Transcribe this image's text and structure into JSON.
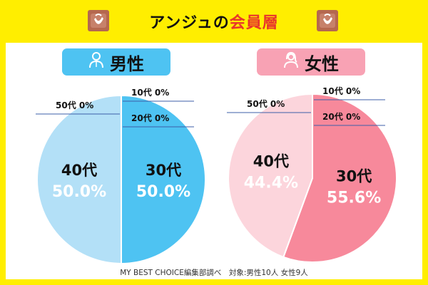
{
  "header": {
    "title_prefix": "アンジュの",
    "title_accent": "会員層",
    "left_logo_icon": "bag-logo-icon",
    "right_logo_icon": "bag-logo-icon"
  },
  "male": {
    "label": "男性",
    "icon": "male-person-icon",
    "accent_color": "#4ec3f2"
  },
  "female": {
    "label": "女性",
    "icon": "female-person-icon",
    "accent_color": "#f8a2b4"
  },
  "footer": "MY BEST CHOICE編集部調べ　対象:男性10人 女性9人",
  "chart_data": [
    {
      "type": "pie",
      "title": "男性",
      "categories": [
        "10代",
        "20代",
        "30代",
        "40代",
        "50代"
      ],
      "values": [
        0,
        0,
        50.0,
        50.0,
        0
      ],
      "labels": [
        "10代 0%",
        "20代 0%",
        "30代 50.0%",
        "40代 50.0%",
        "50代 0%"
      ],
      "colors": {
        "30代": "#4ec3f2",
        "40代": "#b3e0f7"
      }
    },
    {
      "type": "pie",
      "title": "女性",
      "categories": [
        "10代",
        "20代",
        "30代",
        "40代",
        "50代"
      ],
      "values": [
        0,
        0,
        55.6,
        44.4,
        0
      ],
      "labels": [
        "10代 0%",
        "20代 0%",
        "30代 55.6%",
        "40代 44.4%",
        "50代 0%"
      ],
      "colors": {
        "30代": "#f7899b",
        "40代": "#fcd5dc"
      }
    }
  ]
}
